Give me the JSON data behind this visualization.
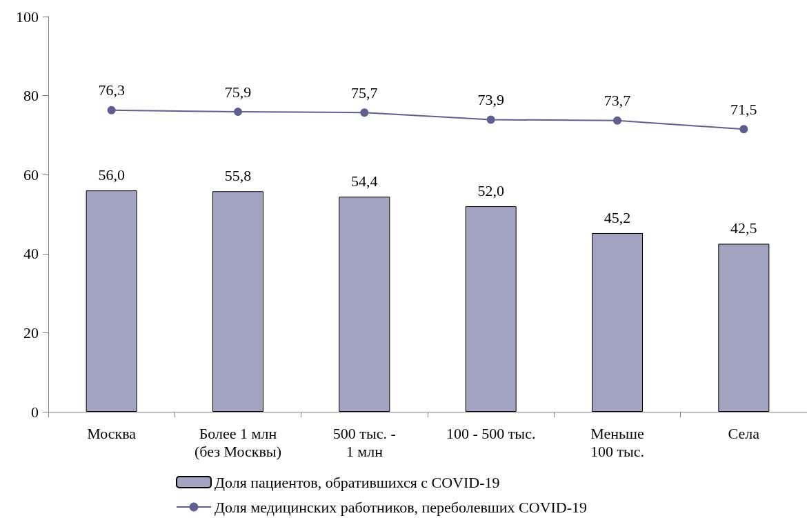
{
  "chart_data": {
    "type": "bar",
    "categories": [
      "Москва",
      "Более 1 млн\n(без Москвы)",
      "500 тыс. -\n1 млн",
      "100 - 500 тыс.",
      "Меньше\n100 тыс.",
      "Села"
    ],
    "series": [
      {
        "name": "Доля пациентов, обратившихся с COVID-19",
        "color": "#a3a3c2",
        "values": [
          56.0,
          55.8,
          54.4,
          52.0,
          45.2,
          42.5
        ],
        "value_labels": [
          "56,0",
          "55,8",
          "54,4",
          "52,0",
          "45,2",
          "42,5"
        ]
      },
      {
        "name": "Доля медицинских работников, переболевших COVID-19",
        "type": "line",
        "color": "#5e5e91",
        "marker": "circle",
        "values": [
          76.3,
          75.9,
          75.7,
          73.9,
          73.7,
          71.5
        ],
        "value_labels": [
          "76,3",
          "75,9",
          "75,7",
          "73,9",
          "73,7",
          "71,5"
        ]
      }
    ],
    "ylim": [
      0,
      100
    ],
    "yticks": [
      0,
      20,
      40,
      60,
      80,
      100
    ],
    "grid": false,
    "legend": "bottom"
  }
}
